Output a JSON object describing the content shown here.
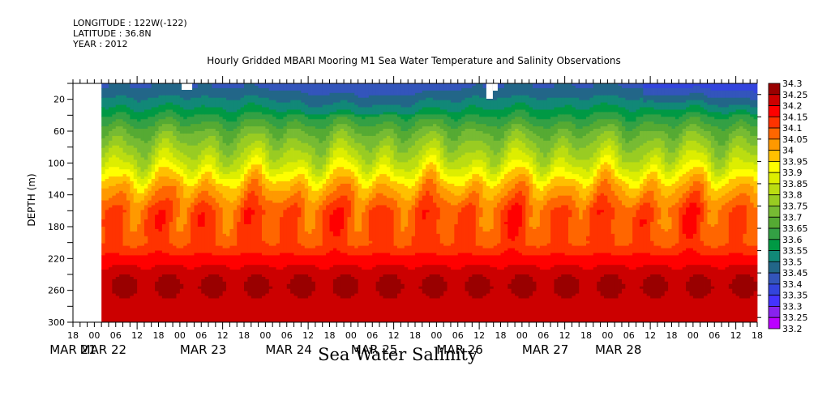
{
  "header": {
    "longitude": "LONGITUDE : 122W(-122)",
    "latitude": "LATITUDE : 36.8N",
    "year": "YEAR : 2012"
  },
  "chart_data": {
    "type": "heatmap",
    "title": "Hourly Gridded MBARI Mooring M1 Sea Water Temperature and Salinity Observations",
    "variable_label": "Sea Water Salinity",
    "ylabel": "DEPTH (m)",
    "xlabel": "",
    "ylim": [
      300,
      0
    ],
    "y_ticks": [
      20,
      60,
      100,
      140,
      180,
      220,
      260,
      300
    ],
    "x_range_hours": [
      0,
      192
    ],
    "data_start_hour": 8,
    "x_hour_ticks": [
      "18",
      "00",
      "06",
      "12",
      "18",
      "00",
      "06",
      "12",
      "18",
      "00",
      "06",
      "12",
      "18",
      "00",
      "06",
      "12",
      "18",
      "00",
      "06",
      "12",
      "18",
      "00",
      "06",
      "12",
      "18",
      "00",
      "06",
      "12",
      "18",
      "00",
      "06",
      "12",
      "18"
    ],
    "x_day_labels": [
      "MAR 21",
      "MAR 22",
      "MAR 23",
      "MAR 24",
      "MAR 25",
      "MAR 26",
      "MAR 27",
      "MAR 28"
    ],
    "colorbar_levels": [
      "34.3",
      "34.25",
      "34.2",
      "34.15",
      "34.1",
      "34.05",
      "34",
      "33.95",
      "33.9",
      "33.85",
      "33.8",
      "33.75",
      "33.7",
      "33.65",
      "33.6",
      "33.55",
      "33.5",
      "33.45",
      "33.4",
      "33.35",
      "33.3",
      "33.25",
      "33.2"
    ],
    "colorbar_colors": [
      "#990000",
      "#cc0000",
      "#ff0000",
      "#ff3300",
      "#ff6600",
      "#ff9900",
      "#ffc000",
      "#ffff00",
      "#ddee00",
      "#bbdd11",
      "#99cc22",
      "#77bb33",
      "#55aa33",
      "#33a044",
      "#009944",
      "#118877",
      "#226688",
      "#3355bb",
      "#3344dd",
      "#4433ff",
      "#8822ee",
      "#bb00ff"
    ],
    "depth_profile_mean": [
      {
        "depth": 5,
        "salinity": 33.45
      },
      {
        "depth": 30,
        "salinity": 33.55
      },
      {
        "depth": 60,
        "salinity": 33.7
      },
      {
        "depth": 100,
        "salinity": 33.85
      },
      {
        "depth": 130,
        "salinity": 34.0
      },
      {
        "depth": 160,
        "salinity": 34.1
      },
      {
        "depth": 200,
        "salinity": 34.1
      },
      {
        "depth": 230,
        "salinity": 34.2
      },
      {
        "depth": 255,
        "salinity": 34.25
      },
      {
        "depth": 300,
        "salinity": 34.2
      }
    ],
    "grid": false,
    "legend": "right"
  }
}
